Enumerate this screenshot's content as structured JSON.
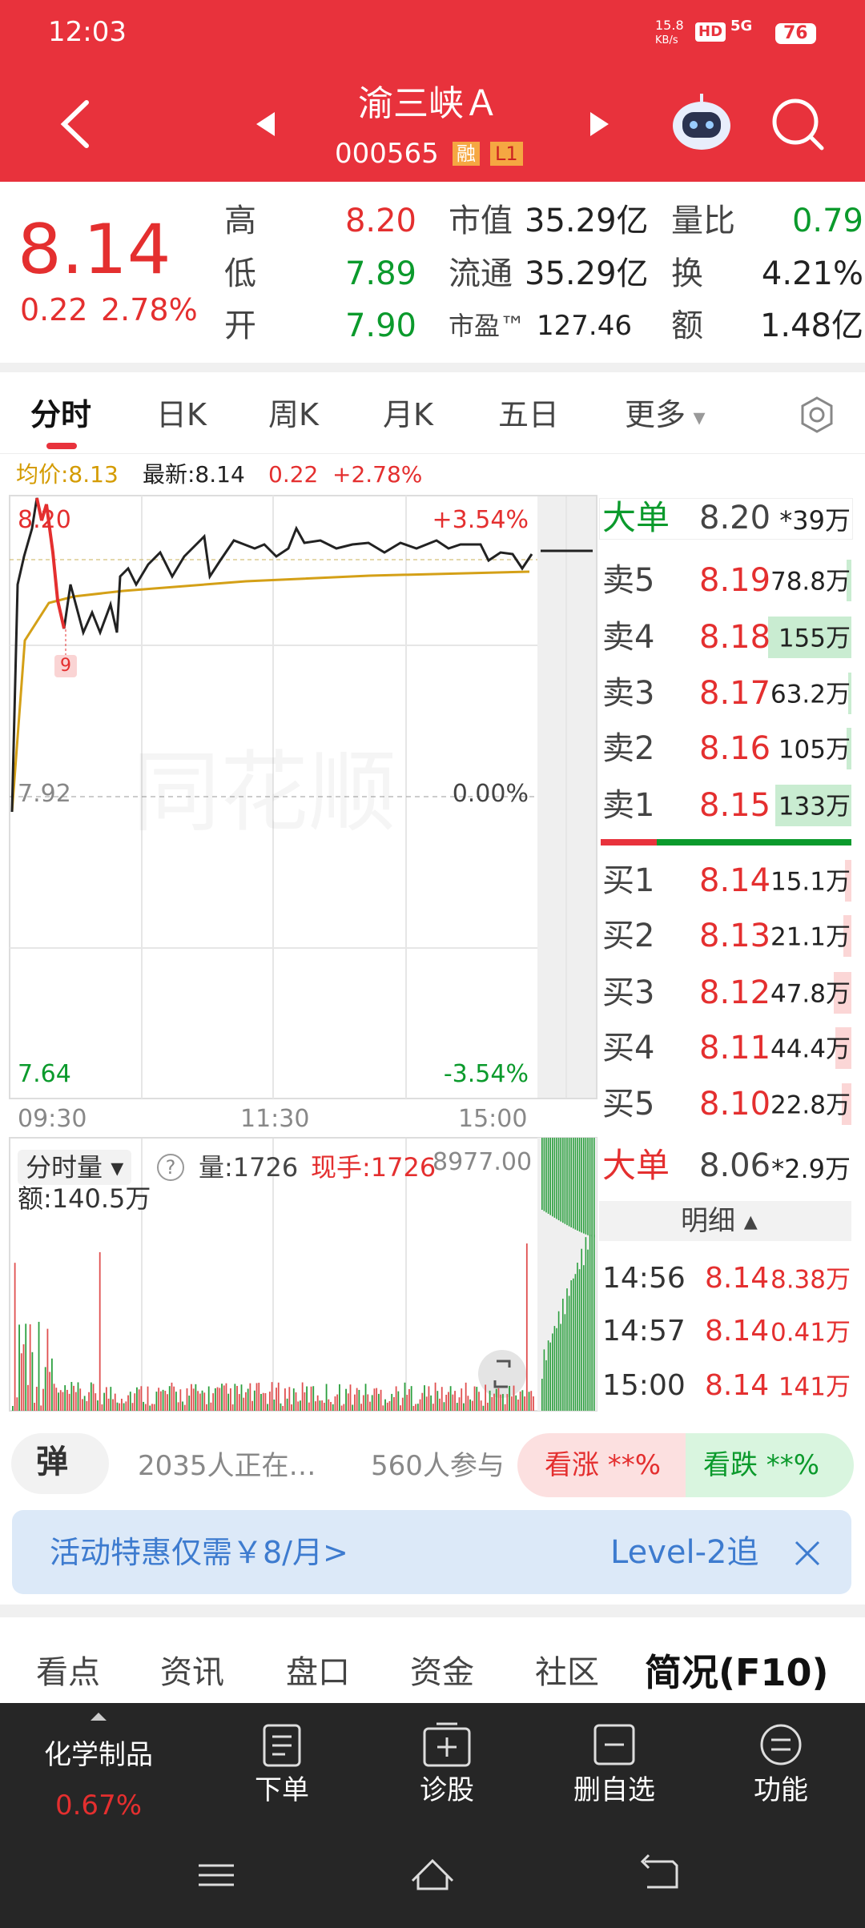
{
  "status_bar": {
    "time": "12:03",
    "speed": "15.8",
    "speed_unit": "KB/s",
    "hd": "HD",
    "network": "5G",
    "battery": "76"
  },
  "header": {
    "name": "渝三峡Ａ",
    "code": "000565",
    "tags": [
      "融",
      "L1"
    ]
  },
  "quote": {
    "price": "8.14",
    "change": "0.22",
    "change_pct": "2.78%",
    "stats": [
      [
        {
          "label": "高",
          "value": "8.20"
        },
        {
          "label": "市值",
          "value": "35.29亿"
        },
        {
          "label": "量比",
          "value": "0.79"
        }
      ],
      [
        {
          "label": "低",
          "value": "7.89"
        },
        {
          "label": "流通",
          "value": "35.29亿"
        },
        {
          "label": "换",
          "value": "4.21%"
        }
      ],
      [
        {
          "label": "开",
          "value": "7.90"
        },
        {
          "label": "市盈™",
          "value": "127.46"
        },
        {
          "label": "额",
          "value": "1.48亿"
        }
      ]
    ]
  },
  "tabs": [
    "分时",
    "日K",
    "周K",
    "月K",
    "五日",
    "更多"
  ],
  "info": {
    "avg": "均价:8.13",
    "latest": "最新:8.14",
    "change": "0.22",
    "change_pct": "+2.78%"
  },
  "chart": {
    "price_high": "8.20",
    "pct_high": "+3.54%",
    "price_mid": "7.92",
    "pct_mid": "0.00%",
    "price_low": "7.64",
    "pct_low": "-3.54%",
    "times": [
      "09:30",
      "11:30",
      "15:00"
    ],
    "marker": "9",
    "watermark": "同花顺"
  },
  "volume": {
    "selector": "分时量",
    "help": "?",
    "vol": "量:1726",
    "hand": "现手:1726",
    "max": "8977.00",
    "amount": "额:140.5万"
  },
  "order_book": {
    "big_sell": {
      "label": "大单",
      "price": "8.20",
      "volume": "*39万"
    },
    "asks": [
      {
        "label": "卖5",
        "price": "8.19",
        "volume": "78.8万"
      },
      {
        "label": "卖4",
        "price": "8.18",
        "volume": "155万"
      },
      {
        "label": "卖3",
        "price": "8.17",
        "volume": "63.2万"
      },
      {
        "label": "卖2",
        "price": "8.16",
        "volume": "105万"
      },
      {
        "label": "卖1",
        "price": "8.15",
        "volume": "133万"
      }
    ],
    "bids": [
      {
        "label": "买1",
        "price": "8.14",
        "volume": "15.1万"
      },
      {
        "label": "买2",
        "price": "8.13",
        "volume": "21.1万"
      },
      {
        "label": "买3",
        "price": "8.12",
        "volume": "47.8万"
      },
      {
        "label": "买4",
        "price": "8.11",
        "volume": "44.4万"
      },
      {
        "label": "买5",
        "price": "8.10",
        "volume": "22.8万"
      }
    ],
    "big_buy": {
      "label": "大单",
      "price": "8.06",
      "volume": "*2.9万"
    },
    "detail_title": "明细",
    "trades": [
      {
        "time": "14:56",
        "price": "8.14",
        "volume": "8.38万"
      },
      {
        "time": "14:57",
        "price": "8.14",
        "volume": "0.41万"
      },
      {
        "time": "15:00",
        "price": "8.14",
        "volume": "141万"
      }
    ]
  },
  "social": {
    "button": "弹",
    "watching": "2035人正在…",
    "joined": "560人参与",
    "up": "看涨 **%",
    "down": "看跌 **%"
  },
  "banner": {
    "text": "活动特惠仅需￥8/月>",
    "right": "Level-2追"
  },
  "bottom_tabs": [
    "看点",
    "资讯",
    "盘口",
    "资金",
    "社区",
    "简况(F10)"
  ],
  "nav": {
    "sector": "化学制品",
    "sector_change": "0.67%",
    "items": [
      "下单",
      "诊股",
      "删自选",
      "功能"
    ]
  }
}
